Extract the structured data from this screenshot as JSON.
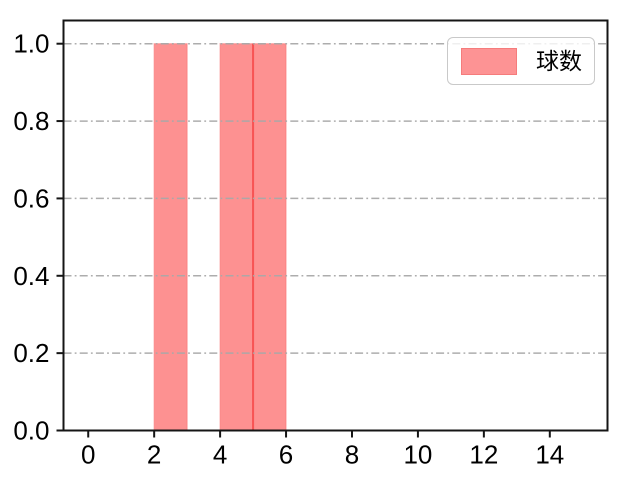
{
  "chart_data": {
    "type": "bar",
    "subtype": "histogram",
    "title": "",
    "xlabel": "",
    "ylabel": "",
    "series": [
      {
        "name": "球数",
        "bars": [
          {
            "x_start": 2,
            "x_end": 3,
            "value": 1.0
          },
          {
            "x_start": 4,
            "x_end": 5,
            "value": 1.0
          },
          {
            "x_start": 5,
            "x_end": 6,
            "value": 1.0
          }
        ]
      }
    ],
    "xlim": [
      -0.75,
      15.75
    ],
    "ylim": [
      0,
      1.06
    ],
    "xticks": [
      0,
      2,
      4,
      6,
      8,
      10,
      12,
      14
    ],
    "xtick_labels": [
      "0",
      "2",
      "4",
      "6",
      "8",
      "10",
      "12",
      "14"
    ],
    "yticks": [
      0.0,
      0.2,
      0.4,
      0.6,
      0.8,
      1.0
    ],
    "ytick_labels": [
      "0.0",
      "0.2",
      "0.4",
      "0.6",
      "0.8",
      "1.0"
    ],
    "grid": {
      "axis": "y",
      "style": "dashdot",
      "on": true
    },
    "legend": {
      "position": "upper right",
      "entries": [
        {
          "label": "球数",
          "swatch": "salmon-patch"
        }
      ]
    }
  },
  "colors": {
    "bar_fill": "#fd9191",
    "bar_edge": "#f87575",
    "bar_seam": "#f53d3d",
    "grid": "#a9a9a9",
    "axis": "#151515",
    "tick_text": "#000000",
    "legend_border": "#c9c9c9",
    "legend_swatch_fill": "#fd9394",
    "legend_swatch_border": "#f57c7c"
  }
}
